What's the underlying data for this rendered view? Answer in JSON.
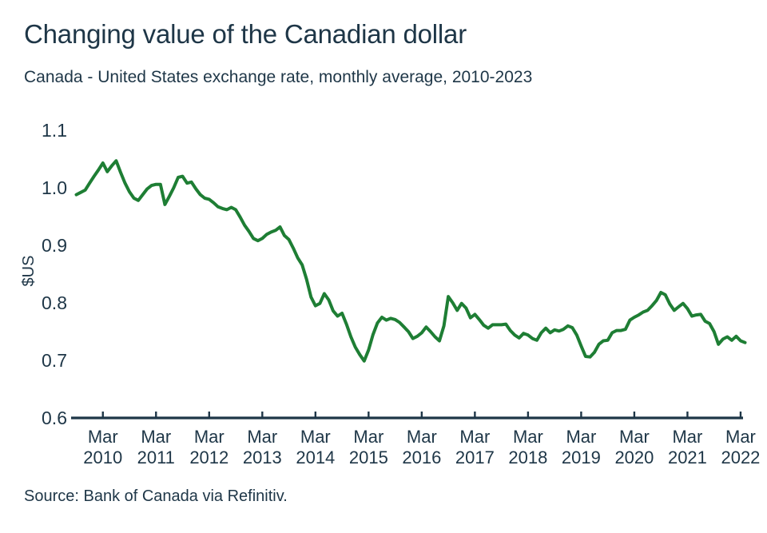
{
  "page": {
    "title": "Changing value of the Canadian dollar",
    "subtitle": "Canada - United States exchange rate, monthly average, 2010-2023",
    "source": "Source: Bank of Canada via Refinitiv."
  },
  "colors": {
    "line": "#1e7e34",
    "text": "#1e3647",
    "axis": "#1e3647"
  },
  "chart_data": {
    "type": "line",
    "title": "Changing value of the Canadian dollar",
    "subtitle": "Canada - United States exchange rate, monthly average, 2010-2023",
    "ylabel": "$US",
    "ylim": [
      0.6,
      1.1
    ],
    "grid": false,
    "legend": false,
    "y_tick_labels": [
      "1.1",
      "1.0",
      "0.9",
      "0.8",
      "0.7",
      "0.6"
    ],
    "x_ticks": [
      {
        "month": "Mar",
        "year": "2010",
        "at": 6
      },
      {
        "month": "Mar",
        "year": "2011",
        "at": 18
      },
      {
        "month": "Mar",
        "year": "2012",
        "at": 30
      },
      {
        "month": "Mar",
        "year": "2013",
        "at": 42
      },
      {
        "month": "Mar",
        "year": "2014",
        "at": 54
      },
      {
        "month": "Mar",
        "year": "2015",
        "at": 66
      },
      {
        "month": "Mar",
        "year": "2016",
        "at": 78
      },
      {
        "month": "Mar",
        "year": "2017",
        "at": 90
      },
      {
        "month": "Mar",
        "year": "2018",
        "at": 102
      },
      {
        "month": "Mar",
        "year": "2019",
        "at": 114
      },
      {
        "month": "Mar",
        "year": "2020",
        "at": 126
      },
      {
        "month": "Mar",
        "year": "2021",
        "at": 138
      },
      {
        "month": "Mar",
        "year": "2022",
        "at": 150
      }
    ],
    "series": [
      {
        "name": "Canada - United States exchange rate, monthly average ($US)",
        "values": [
          0.988,
          0.992,
          0.996,
          1.008,
          1.02,
          1.031,
          1.043,
          1.028,
          1.038,
          1.047,
          1.027,
          1.008,
          0.993,
          0.982,
          0.978,
          0.988,
          0.998,
          1.004,
          1.006,
          1.006,
          0.971,
          0.985,
          1.0,
          1.018,
          1.02,
          1.008,
          1.01,
          0.998,
          0.988,
          0.982,
          0.98,
          0.974,
          0.967,
          0.964,
          0.962,
          0.966,
          0.962,
          0.949,
          0.935,
          0.924,
          0.912,
          0.908,
          0.912,
          0.919,
          0.923,
          0.926,
          0.932,
          0.917,
          0.91,
          0.895,
          0.878,
          0.866,
          0.841,
          0.81,
          0.795,
          0.799,
          0.816,
          0.805,
          0.786,
          0.777,
          0.782,
          0.763,
          0.741,
          0.723,
          0.71,
          0.699,
          0.718,
          0.745,
          0.765,
          0.775,
          0.77,
          0.773,
          0.771,
          0.766,
          0.758,
          0.75,
          0.738,
          0.742,
          0.748,
          0.758,
          0.75,
          0.741,
          0.734,
          0.76,
          0.811,
          0.8,
          0.787,
          0.799,
          0.791,
          0.774,
          0.78,
          0.771,
          0.761,
          0.756,
          0.762,
          0.762,
          0.762,
          0.763,
          0.752,
          0.744,
          0.739,
          0.747,
          0.744,
          0.738,
          0.735,
          0.748,
          0.756,
          0.748,
          0.753,
          0.751,
          0.754,
          0.76,
          0.757,
          0.744,
          0.725,
          0.707,
          0.706,
          0.714,
          0.728,
          0.734,
          0.735,
          0.748,
          0.752,
          0.752,
          0.754,
          0.77,
          0.775,
          0.779,
          0.784,
          0.787,
          0.795,
          0.804,
          0.818,
          0.814,
          0.798,
          0.787,
          0.793,
          0.799,
          0.79,
          0.777,
          0.779,
          0.78,
          0.768,
          0.764,
          0.75,
          0.728,
          0.737,
          0.741,
          0.735,
          0.742,
          0.734,
          0.731
        ]
      }
    ]
  }
}
